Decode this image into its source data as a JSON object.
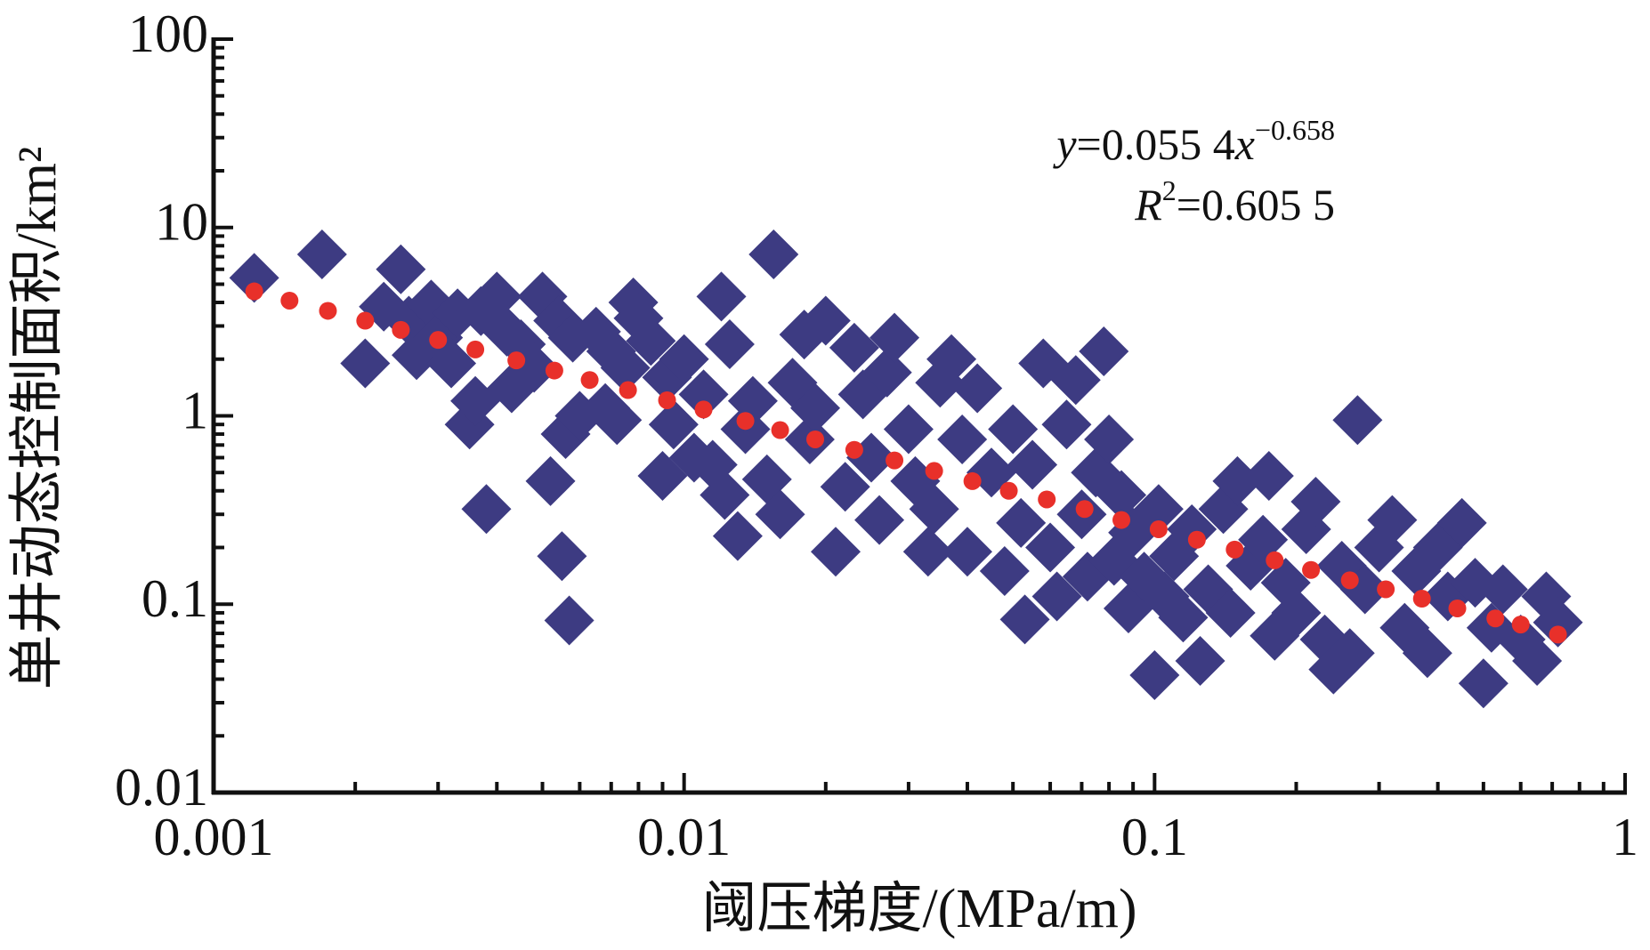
{
  "chart_data": {
    "type": "scatter",
    "xlabel": "阈压梯度/(MPa/m)",
    "ylabel": "单井动态控制面积/km²",
    "xscale": "log",
    "yscale": "log",
    "xlim": [
      0.001,
      1
    ],
    "ylim": [
      0.01,
      100
    ],
    "xticks": [
      0.001,
      0.01,
      0.1,
      1
    ],
    "yticks": [
      0.01,
      0.1,
      1,
      10,
      100
    ],
    "xminorticks": [
      0.002,
      0.003,
      0.004,
      0.005,
      0.006,
      0.007,
      0.008,
      0.009,
      0.02,
      0.03,
      0.04,
      0.05,
      0.06,
      0.07,
      0.08,
      0.09,
      0.2,
      0.3,
      0.4,
      0.5,
      0.6,
      0.7,
      0.8,
      0.9
    ],
    "yminorticks": [
      0.02,
      0.03,
      0.04,
      0.05,
      0.06,
      0.07,
      0.08,
      0.09,
      0.2,
      0.3,
      0.4,
      0.5,
      0.6,
      0.7,
      0.8,
      0.9,
      2,
      3,
      4,
      5,
      6,
      7,
      8,
      9,
      20,
      30,
      40,
      50,
      60,
      70,
      80,
      90
    ],
    "annotations": [
      [
        "y",
        "=0.055 4",
        "x",
        "−0.658"
      ],
      [
        "R",
        "2",
        "=0.605 5"
      ]
    ],
    "series": [
      {
        "marker": "diamond",
        "color": "#3d3b82",
        "x": [
          0.00122,
          0.0017,
          0.0021,
          0.0023,
          0.0025,
          0.0026,
          0.0027,
          0.0029,
          0.003,
          0.0032,
          0.0033,
          0.0035,
          0.0036,
          0.0037,
          0.0038,
          0.004,
          0.0042,
          0.0043,
          0.0045,
          0.0048,
          0.005,
          0.0052,
          0.0054,
          0.0055,
          0.0056,
          0.0057,
          0.0058,
          0.006,
          0.0065,
          0.0068,
          0.007,
          0.0072,
          0.0075,
          0.0078,
          0.008,
          0.0085,
          0.009,
          0.0092,
          0.0095,
          0.01,
          0.0105,
          0.011,
          0.0115,
          0.012,
          0.0122,
          0.0125,
          0.013,
          0.0135,
          0.014,
          0.015,
          0.0155,
          0.016,
          0.017,
          0.018,
          0.0185,
          0.019,
          0.02,
          0.021,
          0.022,
          0.023,
          0.024,
          0.025,
          0.026,
          0.027,
          0.028,
          0.03,
          0.031,
          0.033,
          0.034,
          0.035,
          0.037,
          0.039,
          0.04,
          0.042,
          0.045,
          0.048,
          0.05,
          0.052,
          0.053,
          0.055,
          0.058,
          0.06,
          0.062,
          0.065,
          0.068,
          0.07,
          0.072,
          0.075,
          0.078,
          0.08,
          0.082,
          0.085,
          0.088,
          0.09,
          0.095,
          0.1,
          0.102,
          0.105,
          0.11,
          0.115,
          0.12,
          0.125,
          0.13,
          0.14,
          0.145,
          0.15,
          0.16,
          0.17,
          0.175,
          0.18,
          0.19,
          0.2,
          0.21,
          0.22,
          0.23,
          0.24,
          0.25,
          0.26,
          0.27,
          0.28,
          0.3,
          0.32,
          0.34,
          0.36,
          0.38,
          0.4,
          0.42,
          0.45,
          0.48,
          0.5,
          0.52,
          0.55,
          0.6,
          0.65,
          0.68,
          0.72
        ],
        "values": [
          5.4,
          7.2,
          1.9,
          3.8,
          6.0,
          3.2,
          2.1,
          3.9,
          2.6,
          1.9,
          3.5,
          0.9,
          1.2,
          3.6,
          0.32,
          4.3,
          2.8,
          1.4,
          2.4,
          1.8,
          4.3,
          0.45,
          3.2,
          0.18,
          0.8,
          0.082,
          2.6,
          1.0,
          2.8,
          1.1,
          2.2,
          0.95,
          1.8,
          4.0,
          3.3,
          2.5,
          0.48,
          1.6,
          0.9,
          2.0,
          0.6,
          1.3,
          0.55,
          4.3,
          0.38,
          2.4,
          0.23,
          0.85,
          1.2,
          0.46,
          7.2,
          0.3,
          1.5,
          2.7,
          0.75,
          1.1,
          3.2,
          0.19,
          0.42,
          2.3,
          1.3,
          0.6,
          0.28,
          1.7,
          2.6,
          0.85,
          0.45,
          0.19,
          0.32,
          1.5,
          2.0,
          0.75,
          0.19,
          1.4,
          0.5,
          0.15,
          0.85,
          0.27,
          0.083,
          0.55,
          1.9,
          0.2,
          0.11,
          0.9,
          1.55,
          0.3,
          0.14,
          0.5,
          2.2,
          0.75,
          0.17,
          0.38,
          0.095,
          0.24,
          0.14,
          0.042,
          0.32,
          0.11,
          0.18,
          0.085,
          0.25,
          0.05,
          0.12,
          0.32,
          0.09,
          0.45,
          0.16,
          0.22,
          0.48,
          0.068,
          0.13,
          0.09,
          0.25,
          0.35,
          0.065,
          0.045,
          0.16,
          0.055,
          0.95,
          0.12,
          0.2,
          0.28,
          0.075,
          0.15,
          0.055,
          0.2,
          0.11,
          0.27,
          0.13,
          0.038,
          0.075,
          0.12,
          0.065,
          0.05,
          0.11,
          0.08
        ]
      },
      {
        "marker": "dot",
        "color": "#e8302a",
        "x": [
          0.00122,
          0.00145,
          0.00175,
          0.0021,
          0.0025,
          0.003,
          0.0036,
          0.0044,
          0.0053,
          0.0063,
          0.0076,
          0.0092,
          0.011,
          0.0135,
          0.016,
          0.019,
          0.023,
          0.028,
          0.034,
          0.041,
          0.049,
          0.059,
          0.071,
          0.085,
          0.102,
          0.123,
          0.148,
          0.18,
          0.215,
          0.26,
          0.31,
          0.37,
          0.44,
          0.53,
          0.6,
          0.72
        ],
        "values": [
          4.58,
          4.09,
          3.61,
          3.2,
          2.86,
          2.53,
          2.25,
          1.97,
          1.74,
          1.55,
          1.37,
          1.21,
          1.08,
          0.94,
          0.84,
          0.75,
          0.66,
          0.58,
          0.51,
          0.45,
          0.4,
          0.36,
          0.32,
          0.28,
          0.25,
          0.22,
          0.195,
          0.171,
          0.152,
          0.134,
          0.12,
          0.107,
          0.095,
          0.084,
          0.078,
          0.069
        ]
      }
    ]
  }
}
